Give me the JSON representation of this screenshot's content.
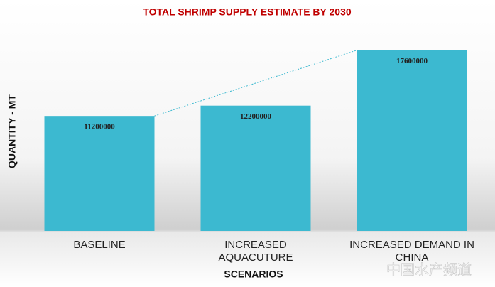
{
  "chart_data": {
    "type": "bar",
    "title": "TOTAL SHRIMP SUPPLY ESTIMATE BY 2030",
    "y_label": "QUANTITY - MT",
    "x_label": "SCENARIOS",
    "categories": [
      "BASELINE",
      "INCREASED AQUACUTURE",
      "INCREASED DEMAND IN CHINA"
    ],
    "values": [
      11200000,
      12200000,
      17600000
    ],
    "color": "#3cb9d0",
    "ylim": [
      0,
      20000000
    ],
    "trendline": true,
    "watermark": "中国水产频道"
  }
}
